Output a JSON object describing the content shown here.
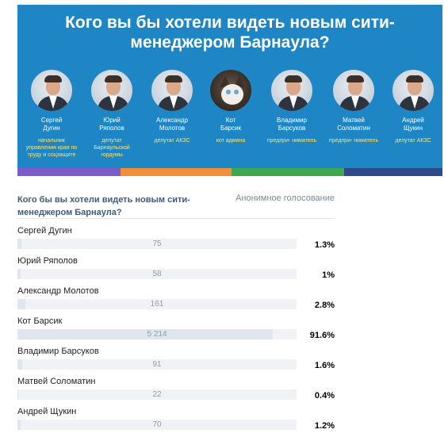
{
  "banner": {
    "title_line1": "Кого вы бы хотели видеть новым сити-",
    "title_line2": "менеджером Барнаула?",
    "colors": {
      "background": "#1f86c6",
      "text": "#ffffff",
      "role": "#ffe36a"
    },
    "stripe_colors": [
      "#7d5bc9",
      "#f0913a",
      "#3fa84f",
      "#2f4a8a"
    ],
    "candidates": [
      {
        "first": "Сергей",
        "last": "Дугин",
        "role": "начальник управления края по труду и соцзащите",
        "avatar": "man-portrait"
      },
      {
        "first": "Юрий",
        "last": "Ряполов",
        "role": "депутат Барнаульской гордумы",
        "avatar": "man-portrait"
      },
      {
        "first": "Александр",
        "last": "Молотов",
        "role": "депутат АКЗС",
        "avatar": "man-portrait"
      },
      {
        "first": "Кот",
        "last": "Барсик",
        "role": "кот админа",
        "avatar": "cat-portrait"
      },
      {
        "first": "Владимир",
        "last": "Барсуков",
        "role": "предпри- ниматель",
        "avatar": "man-portrait"
      },
      {
        "first": "Матвей",
        "last": "Соломатин",
        "role": "предпри- ниматель",
        "avatar": "man-portrait"
      },
      {
        "first": "Андрей",
        "last": "Щукин",
        "role": "депутат АКЗС",
        "avatar": "man-portrait"
      }
    ]
  },
  "poll": {
    "question": "Кого бы вы хотели видеть новым сити-менеджером Барнаула?",
    "type_label": "Анонимное голосование",
    "colors": {
      "question": "#3b5b7e",
      "bar_track": "#f0f2f5",
      "bar_fill": "#dfe6ee",
      "count": "#8e9bad"
    },
    "options": [
      {
        "name": "Сергей Дугин",
        "votes": "75",
        "percent": "1.3%",
        "share": 0.013
      },
      {
        "name": "Юрий Ряполов",
        "votes": "58",
        "percent": "1%",
        "share": 0.01
      },
      {
        "name": "Александр Молотов",
        "votes": "161",
        "percent": "2.8%",
        "share": 0.028
      },
      {
        "name": "Кот Барсик",
        "votes": "5 214",
        "percent": "91.6%",
        "share": 0.916
      },
      {
        "name": "Владимир Барсуков",
        "votes": "91",
        "percent": "1.6%",
        "share": 0.016
      },
      {
        "name": "Матвей Соломатин",
        "votes": "22",
        "percent": "0.4%",
        "share": 0.004
      },
      {
        "name": "Андрей Щукин",
        "votes": "70",
        "percent": "1.2%",
        "share": 0.012
      }
    ]
  }
}
